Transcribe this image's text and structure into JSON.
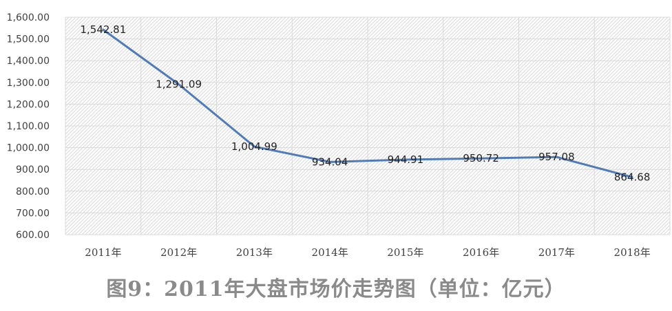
{
  "chart_data": {
    "type": "line",
    "categories": [
      "2011年",
      "2012年",
      "2013年",
      "2014年",
      "2015年",
      "2016年",
      "2017年",
      "2018年"
    ],
    "series": [
      {
        "values": [
          1542.81,
          1291.09,
          1004.99,
          934.04,
          944.91,
          950.72,
          957.08,
          864.68
        ]
      }
    ],
    "data_labels": [
      "1,542.81",
      "1,291.09",
      "1,004.99",
      "934.04",
      "944.91",
      "950.72",
      "957.08",
      "864.68"
    ],
    "y_ticks": [
      "600.00",
      "700.00",
      "800.00",
      "900.00",
      "1,000.00",
      "1,100.00",
      "1,200.00",
      "1,300.00",
      "1,400.00",
      "1,500.00",
      "1,600.00"
    ],
    "ylim": [
      600,
      1600
    ],
    "y_step": 100,
    "grid": true,
    "legend": "none",
    "title": "图9：2011年大盘市场价走势图（单位：亿元）",
    "line_color": "#4f7bb8",
    "plot_background": "hatched light gray"
  }
}
